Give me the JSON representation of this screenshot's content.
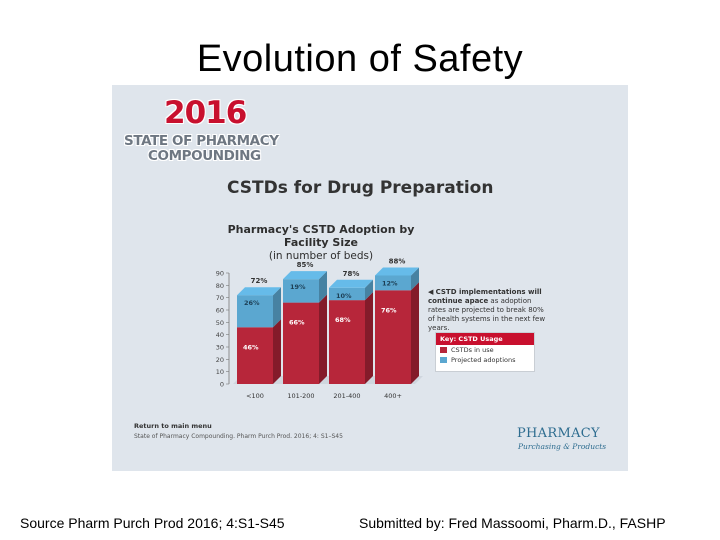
{
  "slide": {
    "title": "Evolution of Safety",
    "footer_left": "Source Pharm Purch Prod 2016; 4:S1-S45",
    "footer_right": "Submitted by: Fred Massoomi, Pharm.D., FASHP"
  },
  "panel": {
    "logo_year": "2016",
    "logo_line1": "STATE OF PHARMACY",
    "logo_line2": "COMPOUNDING",
    "heading": "CSTDs for Drug Preparation",
    "annotation_bold": "CSTD implementations will continue apace",
    "annotation_rest": " as adoption rates are projected to break 80% of health systems in the next few years.",
    "key_title": "Key: CSTD Usage",
    "return_link": "Return to main menu",
    "citation": "State of Pharmacy Compounding. Pharm Purch Prod. 2016; 4: S1–S45",
    "brand_line1": "PHARMACY",
    "brand_line2": "Purchasing & Products"
  },
  "colors": {
    "in_use": "#b7263a",
    "projected": "#5ba7d0",
    "panel_bg": "#dfe5ec"
  },
  "chart_data": {
    "type": "bar",
    "stacked": true,
    "title": "Pharmacy's CSTD Adoption by Facility Size",
    "subtitle": "(in number of beds)",
    "categories": [
      "<100",
      "101-200",
      "201-400",
      "400+"
    ],
    "series": [
      {
        "name": "CSTDs in use",
        "values": [
          46,
          66,
          68,
          76
        ],
        "labels": [
          "46%",
          "66%",
          "68%",
          "76%"
        ]
      },
      {
        "name": "Projected adoptions",
        "values": [
          26,
          19,
          10,
          12
        ],
        "labels": [
          "26%",
          "19%",
          "10%",
          "12%"
        ]
      }
    ],
    "totals": [
      "72%",
      "85%",
      "78%",
      "88%"
    ],
    "ylim": [
      0,
      90
    ],
    "yticks": [
      0,
      10,
      20,
      30,
      40,
      50,
      60,
      70,
      80,
      90
    ],
    "legend": "right",
    "grid": false
  }
}
